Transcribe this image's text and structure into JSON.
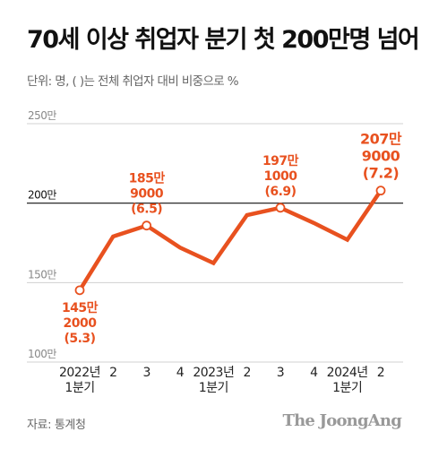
{
  "title": "70세 이상 취업자 분기 첫 200만명 넘어",
  "subtitle": "단위: 명, (  )는 전체 취업자 대비 비중으로 %",
  "source": "자료: 통계청",
  "brand": "The JoongAng",
  "colors": {
    "line": "#e8511f",
    "gridline": "#111111",
    "grid_minor": "#d0d0d0"
  },
  "chart_data": {
    "type": "line",
    "x": [
      "2022년 1분기",
      "2",
      "3",
      "4",
      "2023년 1분기",
      "2",
      "3",
      "4",
      "2024년 1분기",
      "2"
    ],
    "x_tick_lines": [
      [
        "2022년",
        "1분기"
      ],
      [
        "2"
      ],
      [
        "3"
      ],
      [
        "4"
      ],
      [
        "2023년",
        "1분기"
      ],
      [
        "2"
      ],
      [
        "3"
      ],
      [
        "4"
      ],
      [
        "2024년",
        "1분기"
      ],
      [
        "2"
      ]
    ],
    "series": [
      {
        "values": [
          1452000,
          1790000,
          1859000,
          1720000,
          1623000,
          1925000,
          1971000,
          1875000,
          1770000,
          2079000
        ]
      }
    ],
    "ylim": [
      1000000,
      2500000
    ],
    "y_ticks": [
      {
        "value": 2500000,
        "label": "250만",
        "major": false
      },
      {
        "value": 2000000,
        "label": "200만",
        "major": true
      },
      {
        "value": 1500000,
        "label": "150만",
        "major": false
      },
      {
        "value": 1000000,
        "label": "100만",
        "major": false
      }
    ],
    "annotations": [
      {
        "index": 0,
        "lines": [
          "145만",
          "2000",
          "(5.3)"
        ],
        "position": "below"
      },
      {
        "index": 2,
        "lines": [
          "185만",
          "9000",
          "(6.5)"
        ],
        "position": "above"
      },
      {
        "index": 6,
        "lines": [
          "197만",
          "1000",
          "(6.9)"
        ],
        "position": "above"
      },
      {
        "index": 9,
        "lines": [
          "207만",
          "9000",
          "(7.2)"
        ],
        "position": "above"
      }
    ],
    "grid": true,
    "legend": "none"
  }
}
